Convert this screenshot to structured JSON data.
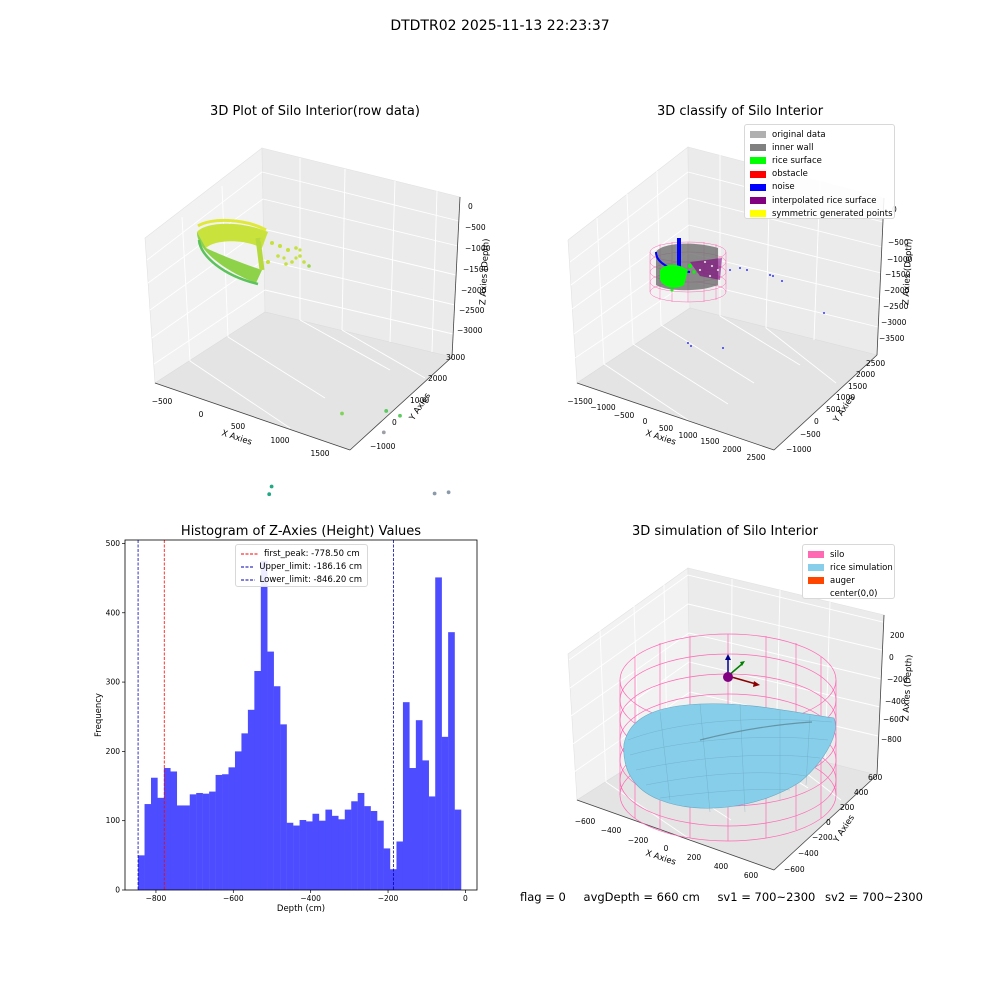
{
  "figure": {
    "suptitle": "DTDTR02 2025-11-13 22:23:37",
    "status": {
      "flag": "flag = 0",
      "avg_depth": "avgDepth = 660 cm",
      "sv1": "sv1 = 700~2300",
      "sv2": "sv2 = 700~2300"
    }
  },
  "chart_data": [
    {
      "type": "scatter",
      "projection": "3d",
      "title": "3D Plot of Silo Interior(row data)",
      "xlabel": "X Axies",
      "ylabel": "Y Axies",
      "zlabel": "Z Axies (Depth)",
      "x_ticks": [
        "−500",
        "0",
        "500",
        "1000",
        "1500"
      ],
      "y_ticks": [
        "−1000",
        "0",
        "1000",
        "2000",
        "3000"
      ],
      "z_ticks": [
        "0",
        "−500",
        "−1000",
        "−1500",
        "−2000",
        "−2500",
        "−3000"
      ],
      "colormap": "viridis",
      "description_points": [
        {
          "x": 650,
          "y": 1900,
          "z": -1600
        },
        {
          "x": 1000,
          "y": 2400,
          "z": -1550
        },
        {
          "x": 1150,
          "y": 2400,
          "z": -1550
        },
        {
          "x": 1000,
          "y": 2300,
          "z": -1900
        },
        {
          "x": 250,
          "y": 500,
          "z": -2600
        },
        {
          "x": 250,
          "y": 400,
          "z": -2700
        },
        {
          "x": 950,
          "y": 600,
          "z": -2700
        },
        {
          "x": 1500,
          "y": 2500,
          "z": -2800
        },
        {
          "x": 1600,
          "y": 2700,
          "z": -2800
        }
      ]
    },
    {
      "type": "scatter",
      "projection": "3d",
      "title": "3D classify of Silo Interior",
      "xlabel": "X Axies",
      "ylabel": "Y Axies",
      "zlabel": "Z Axies (Depth)",
      "x_ticks": [
        "−1500",
        "−1000",
        "−500",
        "0",
        "500",
        "1000",
        "1500",
        "2000",
        "2500"
      ],
      "y_ticks": [
        "−1000",
        "−500",
        "0",
        "500",
        "1000",
        "1500",
        "2000",
        "2500"
      ],
      "z_ticks": [
        "0",
        "−500",
        "−1000",
        "−1500",
        "−2000",
        "−2500",
        "−3000",
        "−3500"
      ],
      "legend": [
        {
          "label": "original data",
          "color": "#b0b0b0"
        },
        {
          "label": "inner wall",
          "color": "#808080"
        },
        {
          "label": "rice surface",
          "color": "#00ff00"
        },
        {
          "label": "obstacle",
          "color": "#ff0000"
        },
        {
          "label": "noise",
          "color": "#0000ff"
        },
        {
          "label": "interpolated rice surface",
          "color": "#800080"
        },
        {
          "label": "symmetric generated points",
          "color": "#ffff00"
        }
      ]
    },
    {
      "type": "bar",
      "title": "Histogram of Z-Axies (Height) Values",
      "xlabel": "Depth (cm)",
      "ylabel": "Frequency",
      "xlim": [
        -880,
        30
      ],
      "ylim": [
        0,
        505
      ],
      "x_ticks": [
        -800,
        -600,
        -400,
        -200,
        0
      ],
      "y_ticks": [
        0,
        100,
        200,
        300,
        400,
        500
      ],
      "bar_color": "#4d4dff",
      "bin_start": -846.2,
      "bin_width": 16.7,
      "values": [
        50,
        124,
        162,
        133,
        176,
        171,
        122,
        122,
        138,
        140,
        139,
        142,
        166,
        167,
        177,
        200,
        226,
        260,
        316,
        475,
        344,
        294,
        239,
        97,
        93,
        101,
        99,
        110,
        100,
        116,
        107,
        102,
        116,
        128,
        140,
        121,
        114,
        100,
        60,
        30,
        70,
        271,
        176,
        245,
        187,
        135,
        451,
        221,
        372,
        116
      ],
      "lines": [
        {
          "value": -778.5,
          "color": "#ff0000",
          "label": "first_peak: -778.50 cm"
        },
        {
          "value": -186.16,
          "color": "#0000b0",
          "label": "Upper_limit: -186.16 cm"
        },
        {
          "value": -846.2,
          "color": "#0000b0",
          "label": "Lower_limit: -846.20 cm"
        }
      ]
    },
    {
      "type": "scatter",
      "projection": "3d",
      "title": "3D simulation of Silo Interior",
      "xlabel": "X Axies",
      "ylabel": "Y Axies",
      "zlabel": "Z Axies (Depth)",
      "x_ticks": [
        "−600",
        "−400",
        "−200",
        "0",
        "200",
        "400",
        "600"
      ],
      "y_ticks": [
        "−600",
        "−400",
        "−200",
        "0",
        "200",
        "400",
        "600"
      ],
      "z_ticks": [
        "200",
        "0",
        "−200",
        "−400",
        "−600",
        "−800"
      ],
      "legend": [
        {
          "label": "silo",
          "color": "#ff69b4"
        },
        {
          "label": "rice simulation",
          "color": "#87ceeb"
        },
        {
          "label": "auger",
          "color": "#ff4500"
        },
        {
          "label": "center(0,0)",
          "color": "#ffffff"
        }
      ]
    }
  ]
}
